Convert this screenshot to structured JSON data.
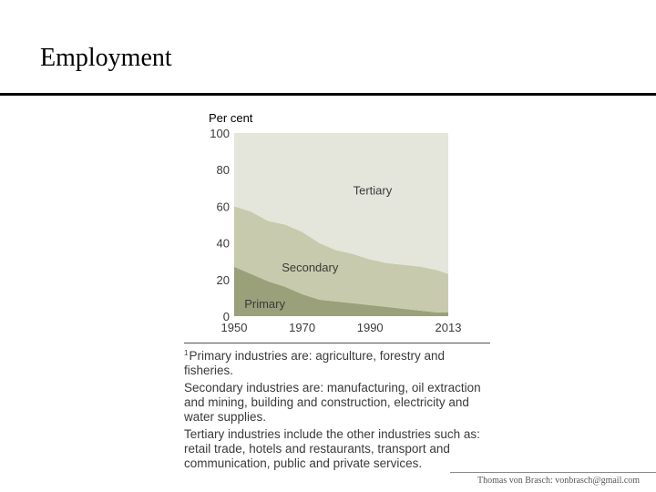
{
  "slide": {
    "title": "Employment"
  },
  "chart_data": {
    "type": "area",
    "stacked": true,
    "ylabel": "Per cent",
    "ylim": [
      0,
      100
    ],
    "yticks": [
      0,
      20,
      40,
      60,
      80,
      100
    ],
    "xlim": [
      1950,
      2013
    ],
    "xticks": [
      1950,
      1970,
      1990,
      2013
    ],
    "x": [
      1950,
      1955,
      1960,
      1965,
      1970,
      1975,
      1980,
      1985,
      1990,
      1995,
      2000,
      2005,
      2010,
      2013
    ],
    "series": [
      {
        "name": "Primary",
        "values": [
          27,
          23,
          19,
          16,
          12,
          9,
          8,
          7,
          6,
          5,
          4,
          3,
          2,
          2
        ]
      },
      {
        "name": "Secondary",
        "values": [
          33,
          34,
          33,
          34,
          34,
          31,
          28,
          27,
          25,
          24,
          24,
          24,
          23,
          21
        ]
      },
      {
        "name": "Tertiary",
        "values": [
          40,
          43,
          48,
          50,
          54,
          60,
          64,
          66,
          69,
          71,
          72,
          73,
          75,
          77
        ]
      }
    ],
    "colors": {
      "Primary": "#9aa07a",
      "Secondary": "#c8caad",
      "Tertiary": "#e4e6dc",
      "text": "#3a3a3a"
    },
    "grid": false
  },
  "notes": {
    "primary": "Primary industries are: agriculture, forestry and fisheries.",
    "primary_marker": "1",
    "secondary": "Secondary industries are: manufacturing, oil extraction and mining, building and construction, electricity and water supplies.",
    "tertiary": "Tertiary industries include the other industries such as: retail trade, hotels and restaurants, transport and communication, public and private services."
  },
  "footer": {
    "text": "Thomas von Brasch: vonbrasch@gmail.com"
  }
}
